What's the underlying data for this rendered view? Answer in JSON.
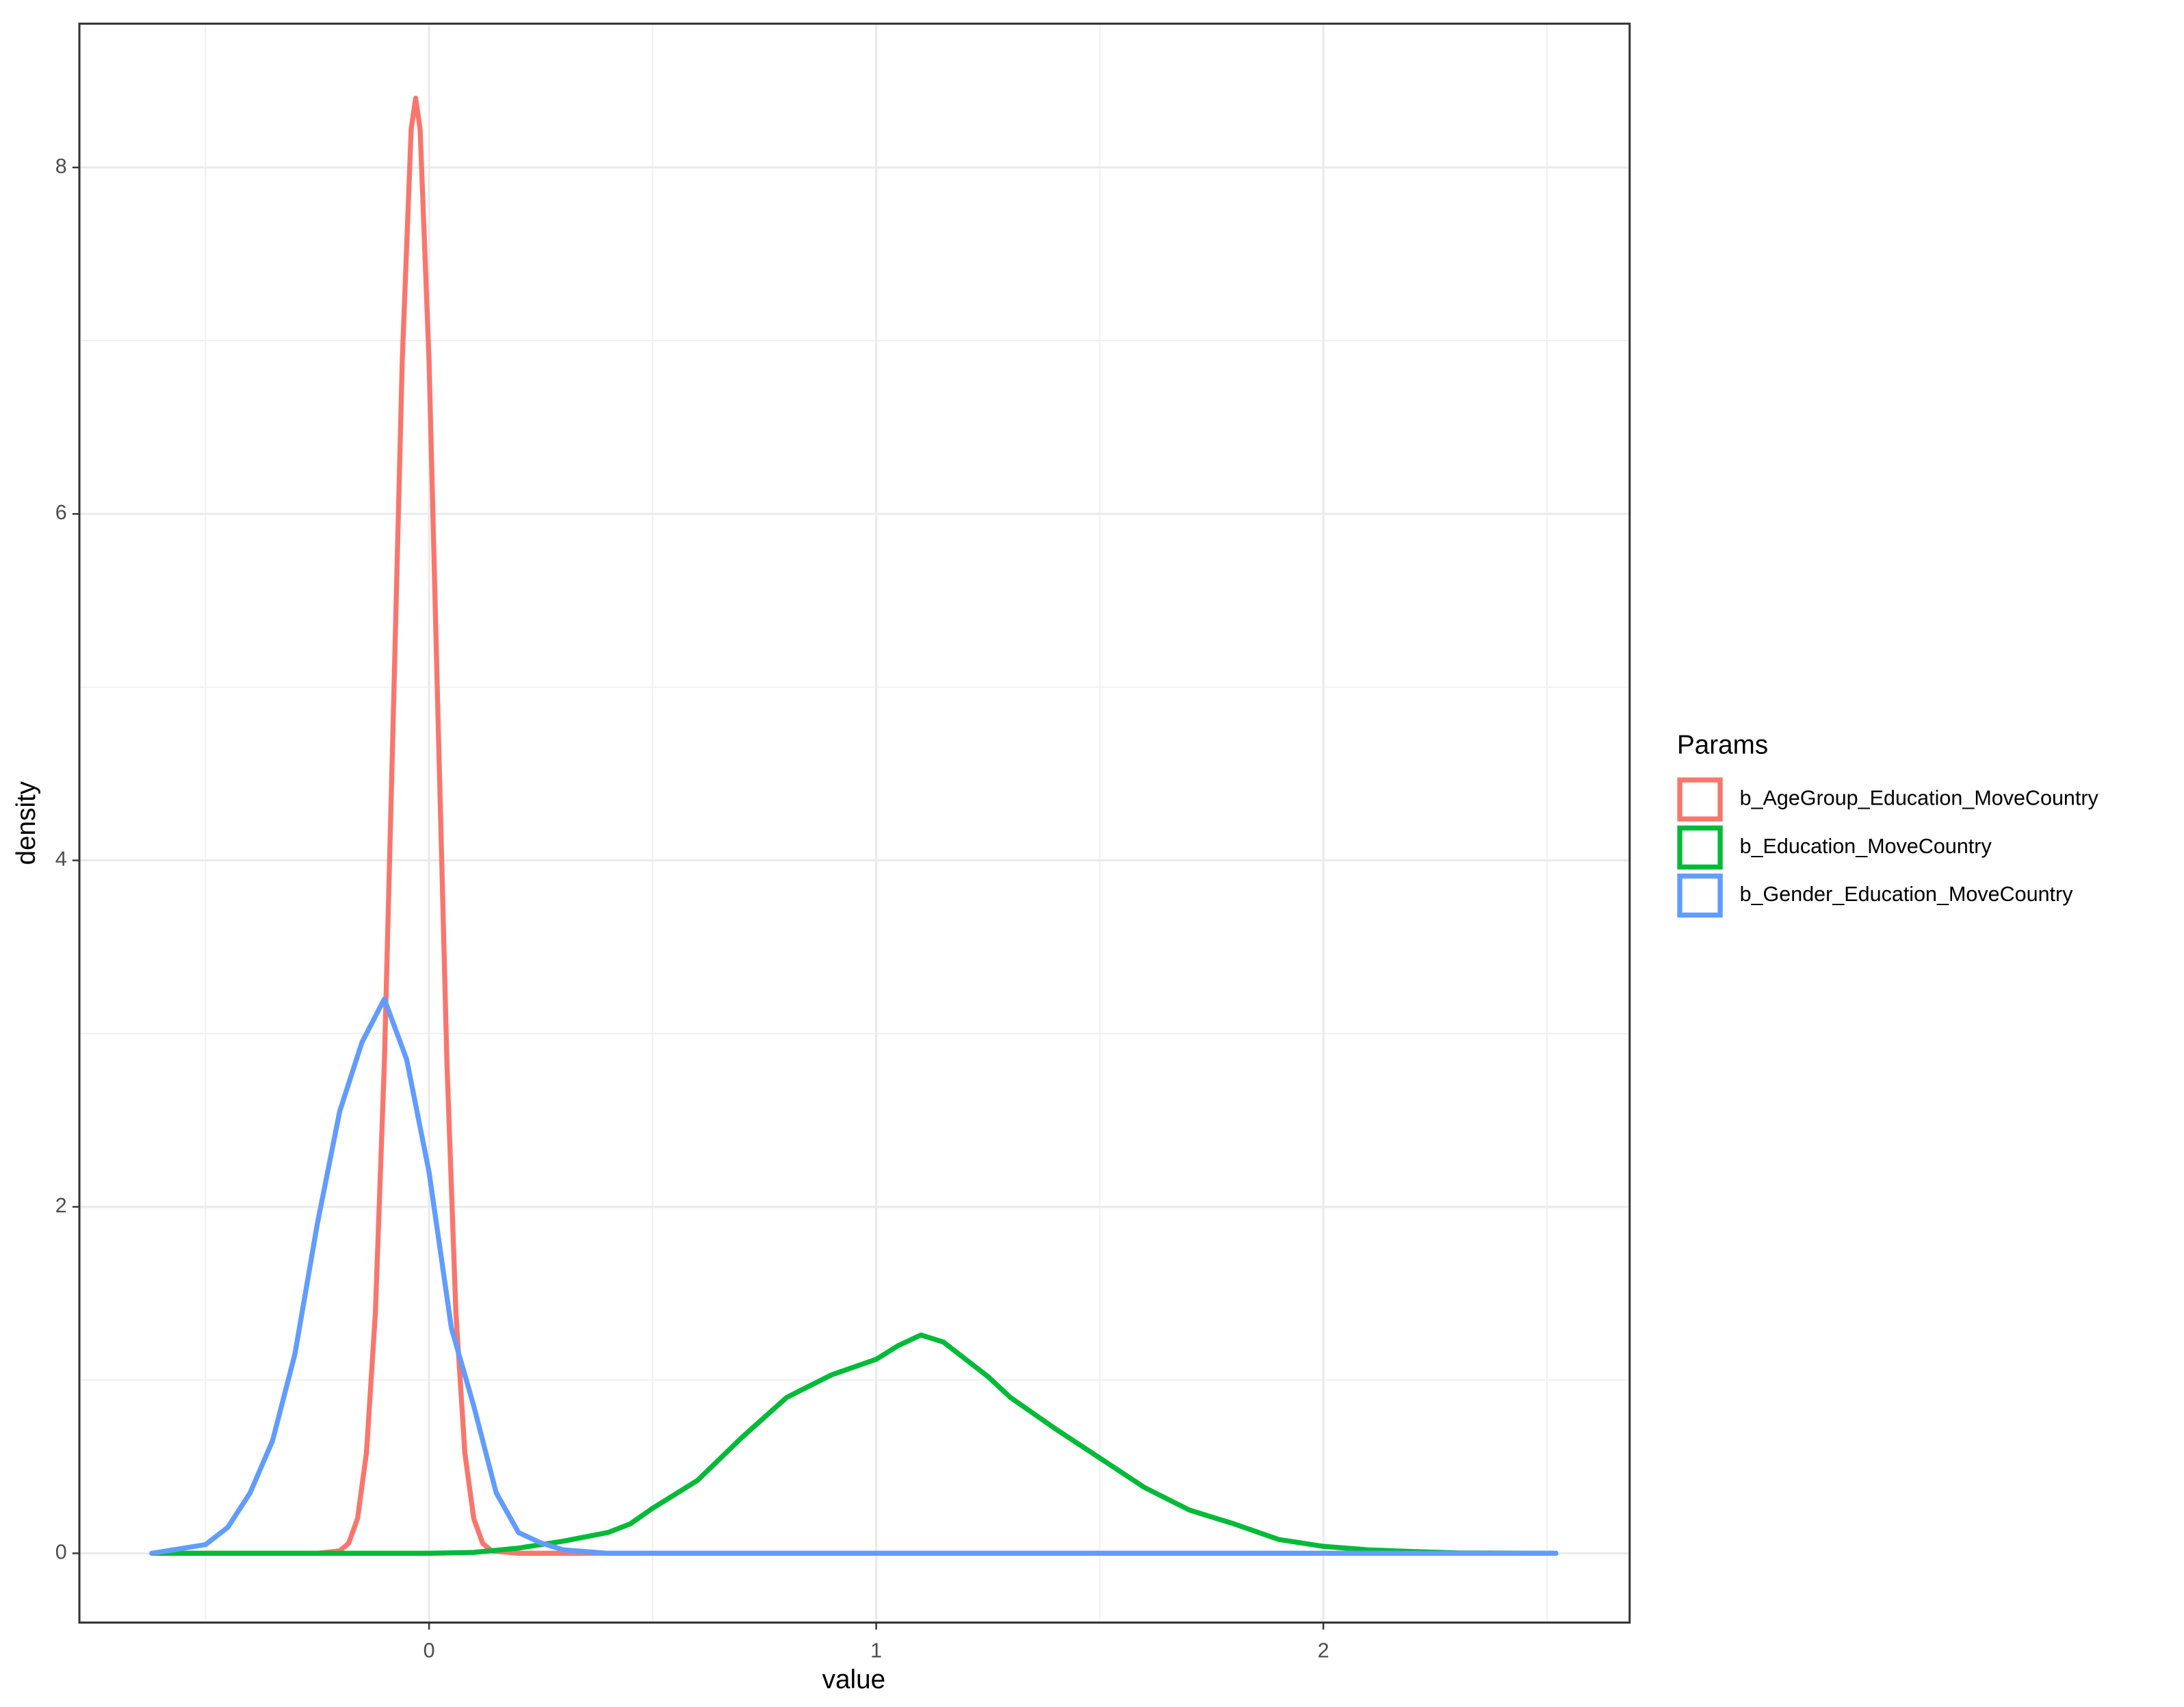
{
  "chart_data": {
    "type": "line",
    "x_label": "value",
    "y_label": "density",
    "legend_title": "Params",
    "legend_position": "right",
    "grid": true,
    "xlim": [
      -0.782,
      2.685
    ],
    "ylim": [
      -0.4,
      8.83
    ],
    "xticks": [
      0,
      1,
      2
    ],
    "yticks": [
      0,
      2,
      4,
      6,
      8
    ],
    "series": [
      {
        "name": "b_AgeGroup_Education_MoveCountry",
        "color": "#F8766D",
        "x": [
          -0.62,
          -0.25,
          -0.2,
          -0.18,
          -0.16,
          -0.14,
          -0.12,
          -0.1,
          -0.08,
          -0.06,
          -0.04,
          -0.03,
          -0.02,
          0,
          0.02,
          0.04,
          0.06,
          0.08,
          0.1,
          0.12,
          0.14,
          0.2,
          0.3,
          2.52
        ],
        "values": [
          0,
          0,
          0.014,
          0.057,
          0.2,
          0.58,
          1.39,
          2.83,
          4.83,
          6.88,
          8.22,
          8.4,
          8.22,
          6.88,
          4.83,
          2.83,
          1.39,
          0.58,
          0.2,
          0.057,
          0.014,
          0,
          0,
          0
        ]
      },
      {
        "name": "b_Education_MoveCountry",
        "color": "#00BA38",
        "x": [
          -0.62,
          0,
          0.1,
          0.2,
          0.3,
          0.4,
          0.45,
          0.5,
          0.6,
          0.7,
          0.8,
          0.9,
          1,
          1.05,
          1.1,
          1.15,
          1.2,
          1.25,
          1.3,
          1.4,
          1.5,
          1.6,
          1.7,
          1.8,
          1.9,
          2,
          2.1,
          2.2,
          2.3,
          2.52
        ],
        "values": [
          0,
          0,
          0.005,
          0.03,
          0.07,
          0.12,
          0.17,
          0.26,
          0.42,
          0.67,
          0.9,
          1.03,
          1.12,
          1.2,
          1.26,
          1.22,
          1.12,
          1.02,
          0.9,
          0.72,
          0.55,
          0.38,
          0.25,
          0.17,
          0.08,
          0.04,
          0.02,
          0.01,
          0.002,
          0
        ]
      },
      {
        "name": "b_Gender_Education_MoveCountry",
        "color": "#619CFF",
        "x": [
          -0.62,
          -0.5,
          -0.45,
          -0.4,
          -0.35,
          -0.3,
          -0.25,
          -0.2,
          -0.15,
          -0.1,
          -0.05,
          0,
          0.05,
          0.1,
          0.15,
          0.2,
          0.25,
          0.3,
          0.4,
          1,
          2,
          2.52
        ],
        "values": [
          0,
          0.05,
          0.15,
          0.35,
          0.65,
          1.15,
          1.9,
          2.55,
          2.95,
          3.2,
          2.85,
          2.2,
          1.3,
          0.85,
          0.35,
          0.12,
          0.06,
          0.02,
          0,
          0,
          0,
          0
        ]
      }
    ]
  }
}
